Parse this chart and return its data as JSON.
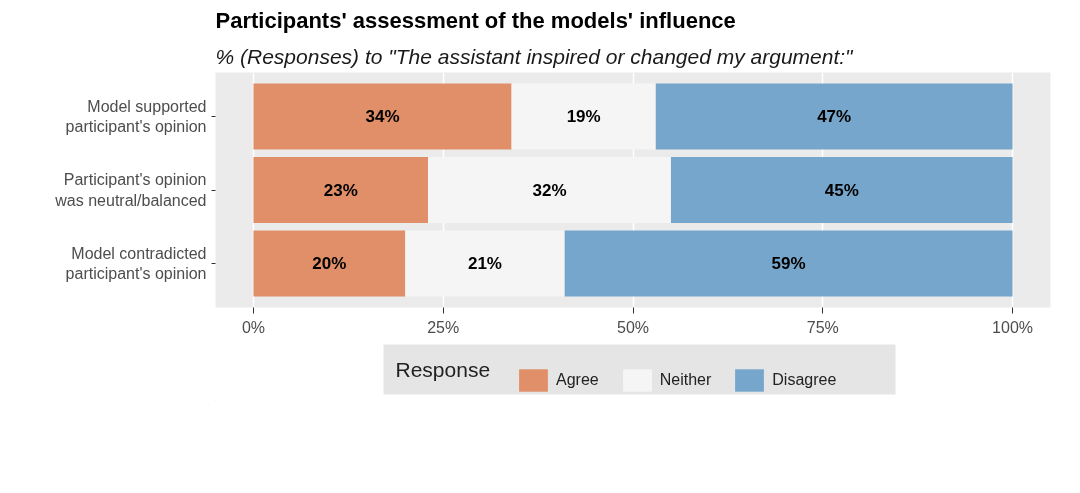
{
  "chart_data": {
    "type": "bar",
    "orientation": "horizontal",
    "stacked": true,
    "title": "Participants' assessment of the models' influence",
    "subtitle": "% (Responses) to \"The assistant inspired or changed my argument:\"",
    "categories": [
      "Model supported\nparticipant's opinion",
      "Participant's opinion\nwas neutral/balanced",
      "Model contradicted\nparticipant's opinion"
    ],
    "series": [
      {
        "name": "Agree",
        "color": "#e08f68",
        "values": [
          34,
          23,
          20
        ],
        "value_labels": [
          "34%",
          "23%",
          "20%"
        ]
      },
      {
        "name": "Neither",
        "color": "#f5f5f5",
        "values": [
          19,
          32,
          21
        ],
        "value_labels": [
          "19%",
          "32%",
          "21%"
        ]
      },
      {
        "name": "Disagree",
        "color": "#76a6cb",
        "values": [
          47,
          45,
          59
        ],
        "value_labels": [
          "47%",
          "45%",
          "59%"
        ]
      }
    ],
    "xlim": [
      -5,
      105
    ],
    "xticks": [
      {
        "value": 0,
        "label": "0%"
      },
      {
        "value": 25,
        "label": "25%"
      },
      {
        "value": 50,
        "label": "50%"
      },
      {
        "value": 75,
        "label": "75%"
      },
      {
        "value": 100,
        "label": "100%"
      }
    ],
    "legend_title": "Response",
    "legend": "bottom",
    "grid": "x"
  }
}
